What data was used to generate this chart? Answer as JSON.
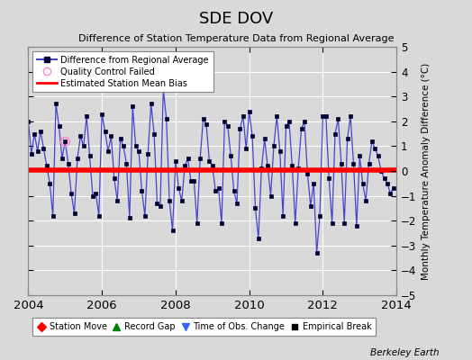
{
  "title": "SDE DOV",
  "subtitle": "Difference of Station Temperature Data from Regional Average",
  "ylabel": "Monthly Temperature Anomaly Difference (°C)",
  "bias": 0.05,
  "xlim": [
    2004.0,
    2014.0
  ],
  "ylim": [
    -5,
    5
  ],
  "yticks": [
    -5,
    -4,
    -3,
    -2,
    -1,
    0,
    1,
    2,
    3,
    4,
    5
  ],
  "xticks": [
    2004,
    2006,
    2008,
    2010,
    2012,
    2014
  ],
  "bg_color": "#d9d9d9",
  "plot_bg": "#d9d9d9",
  "line_color": "#4444cc",
  "marker_color": "#000033",
  "bias_color": "#ff0000",
  "footer": "Berkeley Earth",
  "data": [
    2.0,
    0.7,
    1.5,
    0.8,
    1.6,
    0.9,
    0.2,
    -0.5,
    -1.8,
    2.7,
    1.8,
    0.5,
    1.2,
    0.3,
    -0.9,
    -1.7,
    0.5,
    1.4,
    1.0,
    2.2,
    0.6,
    -1.0,
    -0.9,
    -1.8,
    2.3,
    1.6,
    0.8,
    1.4,
    -0.3,
    -1.2,
    1.3,
    1.0,
    0.3,
    -1.9,
    2.6,
    1.0,
    0.8,
    -0.8,
    -1.8,
    0.7,
    2.7,
    1.5,
    -1.3,
    -1.4,
    3.3,
    2.1,
    -1.2,
    -2.4,
    0.4,
    -0.7,
    -1.2,
    0.2,
    0.5,
    -0.4,
    -0.4,
    -2.1,
    0.5,
    2.1,
    1.9,
    0.4,
    0.2,
    -0.8,
    -0.7,
    -2.1,
    2.0,
    1.8,
    0.6,
    -0.8,
    -1.3,
    1.7,
    2.2,
    0.9,
    2.4,
    1.4,
    -1.5,
    -2.7,
    0.1,
    1.3,
    0.2,
    -1.0,
    1.0,
    2.2,
    0.8,
    -1.8,
    1.8,
    2.0,
    0.2,
    -2.1,
    0.1,
    1.7,
    2.0,
    -0.1,
    -1.4,
    -0.5,
    -3.3,
    -1.8,
    2.2,
    2.2,
    -0.3,
    -2.1,
    1.5,
    2.1,
    0.3,
    -2.1,
    1.3,
    2.2,
    0.3,
    -2.2,
    0.6,
    -0.5,
    -1.2,
    0.3,
    1.2,
    0.9,
    0.6,
    0.0,
    -0.3,
    -0.5,
    -0.9,
    -0.7
  ],
  "qc_failed_indices": [
    12
  ],
  "legend1_entries": [
    "Difference from Regional Average",
    "Quality Control Failed",
    "Estimated Station Mean Bias"
  ],
  "legend2_entries": [
    "Station Move",
    "Record Gap",
    "Time of Obs. Change",
    "Empirical Break"
  ]
}
